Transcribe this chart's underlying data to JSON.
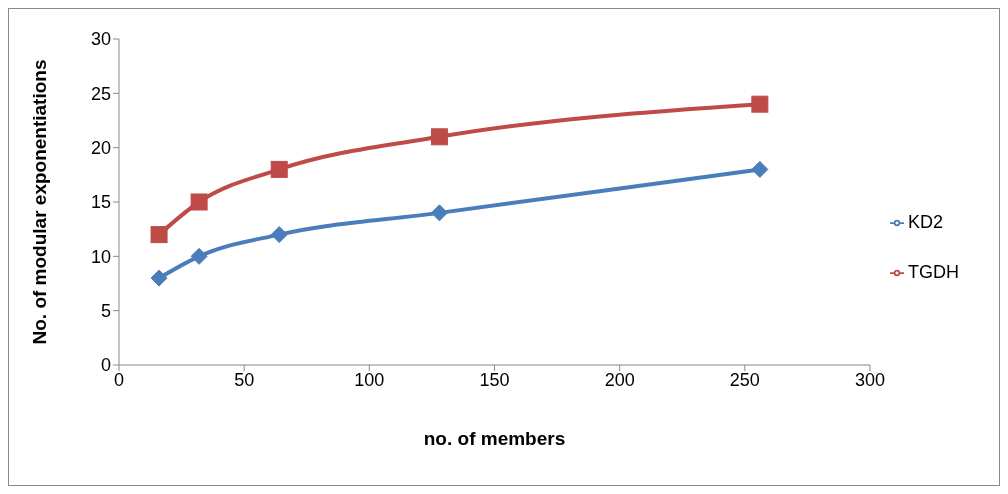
{
  "chart_data": {
    "type": "line",
    "xlabel": "no. of members",
    "ylabel": "No. of modular exponentiations",
    "x": [
      16,
      32,
      64,
      128,
      256
    ],
    "series": [
      {
        "name": "KD2",
        "color": "#4a7ebb",
        "values": [
          8,
          10,
          12,
          14,
          18
        ],
        "marker": "diamond"
      },
      {
        "name": "TGDH",
        "color": "#be4b48",
        "values": [
          12,
          15,
          18,
          21,
          24
        ],
        "marker": "square"
      }
    ],
    "xlim": [
      0,
      300
    ],
    "xticks": [
      0,
      50,
      100,
      150,
      200,
      250,
      300
    ],
    "ylim": [
      0,
      30
    ],
    "yticks": [
      0,
      5,
      10,
      15,
      20,
      25,
      30
    ],
    "grid": false,
    "legend": "right",
    "line_style": "solid"
  }
}
